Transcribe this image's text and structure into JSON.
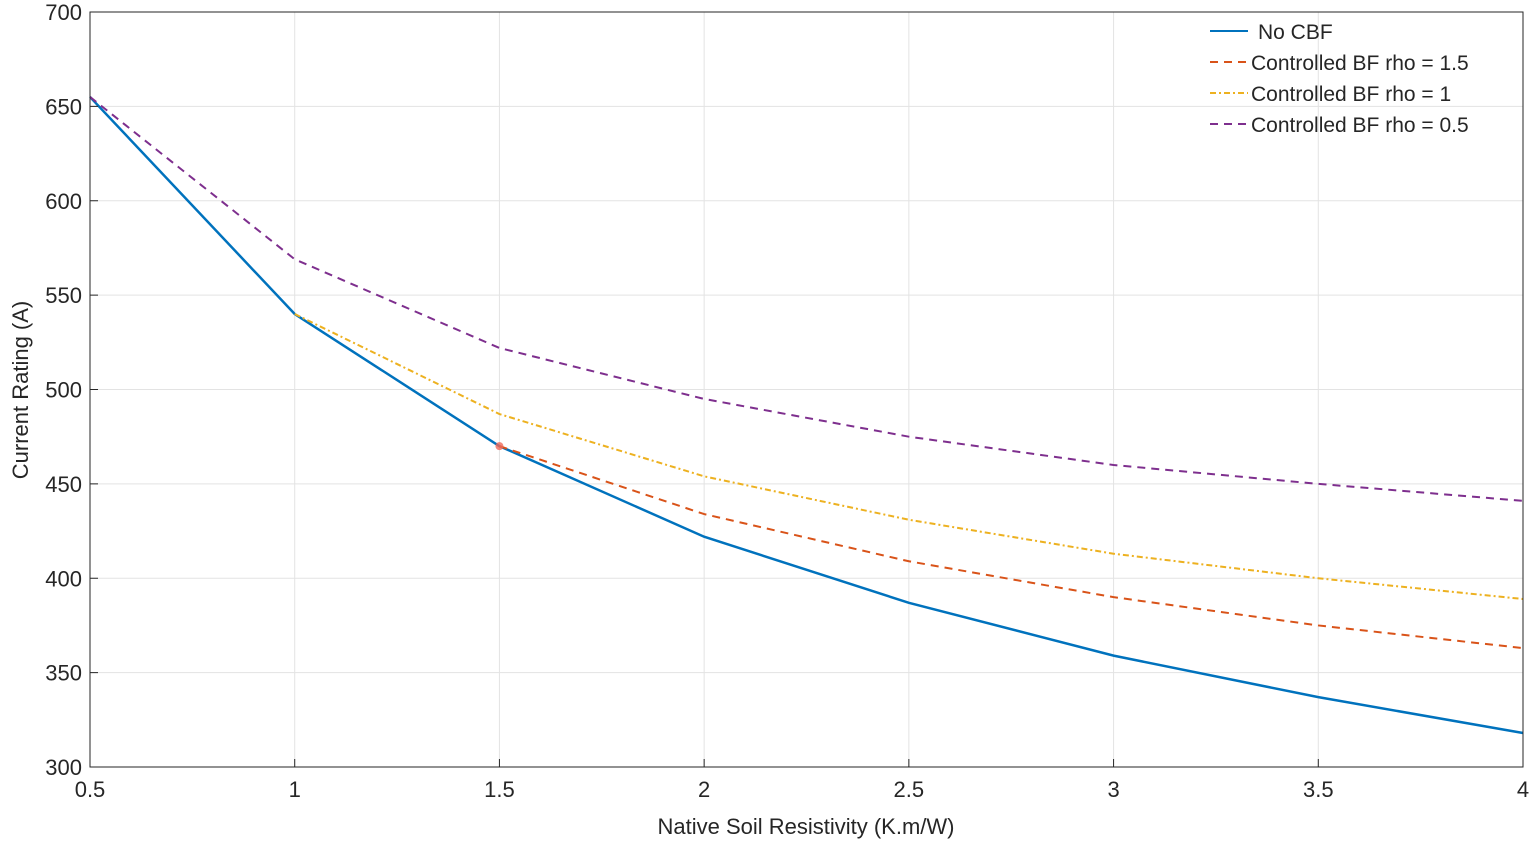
{
  "chart_data": {
    "type": "line",
    "title": "",
    "xlabel": "Native Soil Resistivity (K.m/W)",
    "ylabel": "Current Rating (A)",
    "xlim": [
      0.5,
      4
    ],
    "ylim": [
      300,
      700
    ],
    "xticks": [
      0.5,
      1,
      1.5,
      2,
      2.5,
      3,
      3.5,
      4
    ],
    "xtick_labels": [
      "0.5",
      "1",
      "1.5",
      "2",
      "2.5",
      "3",
      "3.5",
      "4"
    ],
    "yticks": [
      300,
      350,
      400,
      450,
      500,
      550,
      600,
      650,
      700
    ],
    "ytick_labels": [
      "300",
      "350",
      "400",
      "450",
      "500",
      "550",
      "600",
      "650",
      "700"
    ],
    "grid": true,
    "legend_position": "top-right",
    "series": [
      {
        "name": "No CBF",
        "color": "#0072BD",
        "style": "solid",
        "x": [
          0.5,
          1,
          1.5,
          2,
          2.5,
          3,
          3.5,
          4
        ],
        "y": [
          655,
          540,
          470,
          422,
          387,
          359,
          337,
          318
        ]
      },
      {
        "name": "Controlled BF rho = 1.5",
        "color": "#D95319",
        "style": "dashed",
        "x": [
          1.5,
          2,
          2.5,
          3,
          3.5,
          4
        ],
        "y": [
          470,
          434,
          409,
          390,
          375,
          363
        ]
      },
      {
        "name": "Controlled BF rho = 1",
        "color": "#EDB120",
        "style": "dashdot",
        "x": [
          1,
          1.5,
          2,
          2.5,
          3,
          3.5,
          4
        ],
        "y": [
          540,
          487,
          454,
          431,
          413,
          400,
          389
        ]
      },
      {
        "name": "Controlled BF rho = 0.5",
        "color": "#7E2F8E",
        "style": "dashed",
        "x": [
          0.5,
          1,
          1.5,
          2,
          2.5,
          3,
          3.5,
          4
        ],
        "y": [
          655,
          569,
          522,
          495,
          475,
          460,
          450,
          441
        ]
      }
    ]
  }
}
